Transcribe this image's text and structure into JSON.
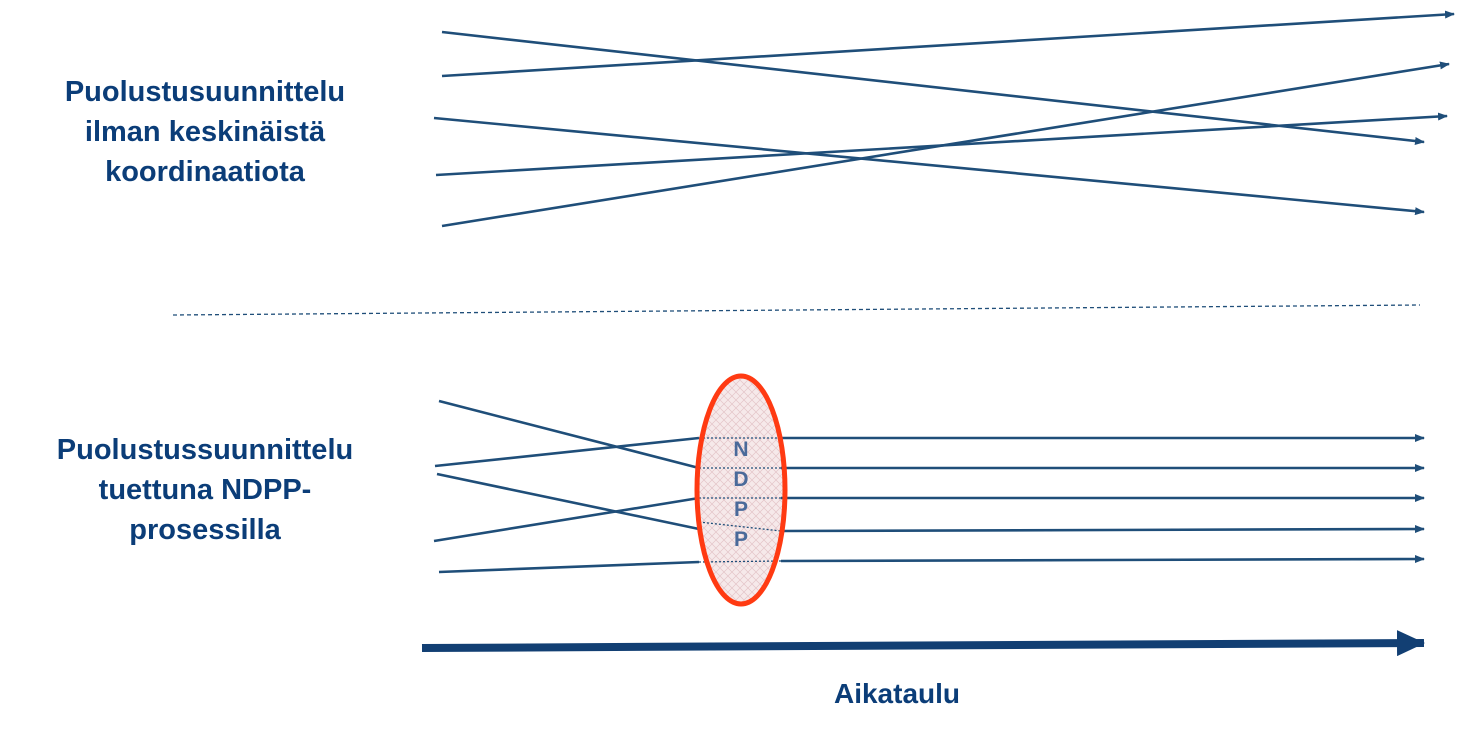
{
  "top_section": {
    "title_lines": [
      "Puolustusuunnittelu",
      "ilman keskinäistä",
      "koordinaatiota"
    ]
  },
  "bottom_section": {
    "title_lines": [
      "Puolustussuunnittelu",
      "tuettuna NDPP-",
      "prosessilla"
    ],
    "ellipse_letters": [
      "N",
      "D",
      "P",
      "P"
    ]
  },
  "time_axis": {
    "label": "Aikataulu"
  },
  "colors": {
    "line": "#1f4e79",
    "text": "#0b3d78",
    "axis": "#123f73",
    "ellipse_stroke": "#ff3a12",
    "ellipse_fill": "#f6e9ea",
    "letters": "#4a6a9a"
  }
}
